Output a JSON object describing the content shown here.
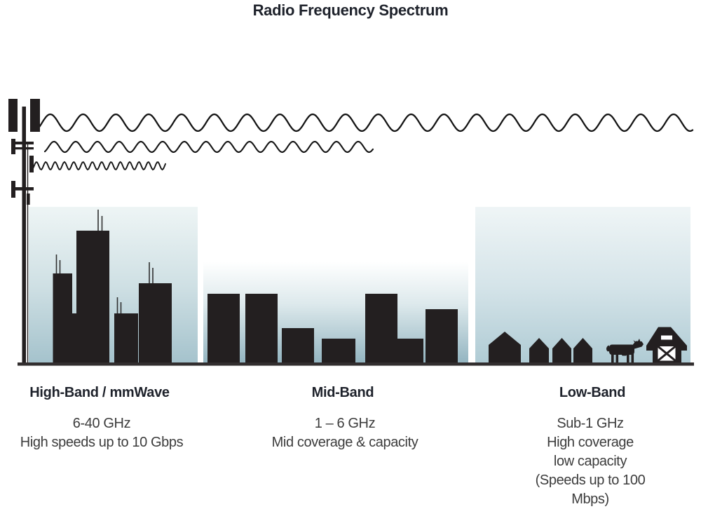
{
  "title": "Radio Frequency Spectrum",
  "bands": [
    {
      "id": "high",
      "label": "High-Band / mmWave",
      "specs": [
        "6-40 GHz",
        "High speeds up to 10 Gbps"
      ],
      "scene": "city skyline with antenna-topped skyscrapers",
      "wave": "short-wavelength-wave"
    },
    {
      "id": "mid",
      "label": "Mid-Band",
      "specs": [
        "1 – 6 GHz",
        "Mid coverage & capacity"
      ],
      "scene": "mid-rise buildings",
      "wave": "medium-wavelength-wave"
    },
    {
      "id": "low",
      "label": "Low-Band",
      "specs": [
        "Sub-1 GHz",
        "High coverage",
        "low capacity",
        "(Speeds up to 100 Mbps)"
      ],
      "scene": "houses, cow and barn (rural)",
      "wave": "long-wavelength-wave"
    }
  ],
  "icons": [
    "cell-tower-icon",
    "long-wavelength-wave-icon",
    "medium-wavelength-wave-icon",
    "short-wavelength-wave-icon",
    "high-band-skyline-icon",
    "mid-band-skyline-icon",
    "house-icon",
    "cow-icon",
    "barn-icon"
  ],
  "colors": {
    "ink": "#231f20",
    "heading": "#1e222b",
    "body_text": "#3c3c3c",
    "ground": "#322e2f",
    "wave": "#141414",
    "gradient_high_bottom": "#a4c2cc",
    "gradient_mid_bottom": "#92b4c0",
    "gradient_low_bottom": "#afcbd4",
    "background": "#ffffff"
  }
}
